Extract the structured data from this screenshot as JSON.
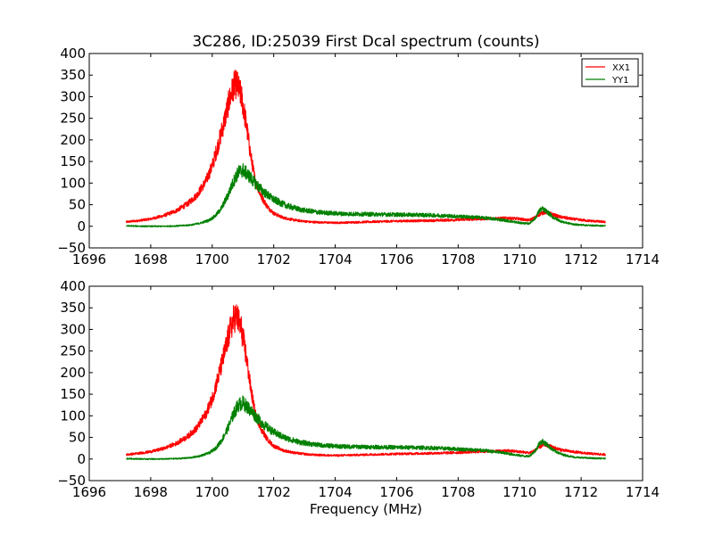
{
  "chart_data": [
    {
      "type": "line",
      "title": "3C286, ID:25039 First Dcal spectrum (counts)",
      "xlabel": "",
      "ylabel": "",
      "xlim": [
        1696,
        1714
      ],
      "ylim": [
        -50,
        400
      ],
      "xticks": [
        1696,
        1698,
        1700,
        1702,
        1704,
        1706,
        1708,
        1710,
        1712,
        1714
      ],
      "yticks": [
        -50,
        0,
        50,
        100,
        150,
        200,
        250,
        300,
        350,
        400
      ],
      "grid": false,
      "legend": "top-right",
      "series": [
        {
          "name": "XX1",
          "color": "#ff0000",
          "noise": 0.1,
          "x": [
            1697.2,
            1697.6,
            1698.0,
            1698.4,
            1698.8,
            1699.2,
            1699.5,
            1699.8,
            1700.0,
            1700.2,
            1700.4,
            1700.55,
            1700.7,
            1700.8,
            1700.95,
            1701.1,
            1701.25,
            1701.4,
            1701.6,
            1701.8,
            1702.0,
            1702.3,
            1702.7,
            1703.2,
            1704.0,
            1705.0,
            1706.0,
            1707.0,
            1708.0,
            1709.0,
            1709.6,
            1710.0,
            1710.3,
            1710.5,
            1710.7,
            1710.85,
            1711.0,
            1711.3,
            1711.7,
            1712.2,
            1712.8
          ],
          "y": [
            10,
            13,
            17,
            24,
            35,
            52,
            72,
            105,
            140,
            190,
            245,
            290,
            325,
            330,
            300,
            240,
            165,
            105,
            68,
            45,
            30,
            20,
            14,
            10,
            8,
            10,
            12,
            13,
            15,
            18,
            19,
            17,
            14,
            20,
            30,
            33,
            29,
            22,
            17,
            13,
            10
          ]
        },
        {
          "name": "YY1",
          "color": "#008000",
          "noise": 0.12,
          "x": [
            1697.2,
            1697.8,
            1698.4,
            1698.9,
            1699.3,
            1699.6,
            1699.9,
            1700.1,
            1700.3,
            1700.5,
            1700.7,
            1700.85,
            1701.0,
            1701.15,
            1701.3,
            1701.5,
            1701.7,
            1702.0,
            1702.4,
            1702.9,
            1703.5,
            1704.2,
            1705.0,
            1706.0,
            1707.0,
            1708.0,
            1708.8,
            1709.5,
            1710.0,
            1710.3,
            1710.5,
            1710.65,
            1710.75,
            1710.9,
            1711.1,
            1711.4,
            1711.8,
            1712.3,
            1712.8
          ],
          "y": [
            1,
            0,
            0,
            1,
            3,
            7,
            14,
            24,
            42,
            70,
            105,
            125,
            130,
            120,
            108,
            92,
            78,
            62,
            48,
            38,
            32,
            29,
            28,
            27,
            26,
            23,
            20,
            14,
            8,
            6,
            18,
            37,
            40,
            33,
            20,
            10,
            4,
            2,
            1
          ]
        }
      ]
    },
    {
      "type": "line",
      "title": "",
      "xlabel": "Frequency (MHz)",
      "ylabel": "",
      "xlim": [
        1696,
        1714
      ],
      "ylim": [
        -50,
        400
      ],
      "xticks": [
        1696,
        1698,
        1700,
        1702,
        1704,
        1706,
        1708,
        1710,
        1712,
        1714
      ],
      "yticks": [
        -50,
        0,
        50,
        100,
        150,
        200,
        250,
        300,
        350,
        400
      ],
      "grid": false,
      "legend": "none",
      "series": [
        {
          "color": "#ff0000",
          "noise": 0.1,
          "x": [
            1697.2,
            1697.6,
            1698.0,
            1698.4,
            1698.8,
            1699.2,
            1699.5,
            1699.8,
            1700.0,
            1700.2,
            1700.4,
            1700.55,
            1700.7,
            1700.8,
            1700.95,
            1701.1,
            1701.25,
            1701.4,
            1701.6,
            1701.8,
            1702.0,
            1702.3,
            1702.7,
            1703.2,
            1704.0,
            1705.0,
            1706.0,
            1707.0,
            1708.0,
            1709.0,
            1709.6,
            1710.0,
            1710.3,
            1710.5,
            1710.7,
            1710.85,
            1711.0,
            1711.3,
            1711.7,
            1712.2,
            1712.8
          ],
          "y": [
            10,
            13,
            17,
            24,
            35,
            52,
            72,
            105,
            140,
            190,
            245,
            290,
            325,
            330,
            300,
            240,
            165,
            105,
            68,
            45,
            30,
            20,
            14,
            10,
            8,
            10,
            12,
            13,
            15,
            18,
            19,
            17,
            14,
            20,
            30,
            33,
            29,
            22,
            17,
            13,
            10
          ]
        },
        {
          "color": "#008000",
          "noise": 0.12,
          "x": [
            1697.2,
            1697.8,
            1698.4,
            1698.9,
            1699.3,
            1699.6,
            1699.9,
            1700.1,
            1700.3,
            1700.5,
            1700.7,
            1700.85,
            1701.0,
            1701.15,
            1701.3,
            1701.5,
            1701.7,
            1702.0,
            1702.4,
            1702.9,
            1703.5,
            1704.2,
            1705.0,
            1706.0,
            1707.0,
            1708.0,
            1708.8,
            1709.5,
            1710.0,
            1710.3,
            1710.5,
            1710.65,
            1710.75,
            1710.9,
            1711.1,
            1711.4,
            1711.8,
            1712.3,
            1712.8
          ],
          "y": [
            1,
            0,
            0,
            1,
            3,
            7,
            14,
            24,
            42,
            70,
            105,
            125,
            130,
            120,
            108,
            92,
            78,
            62,
            48,
            38,
            32,
            29,
            28,
            27,
            26,
            23,
            20,
            14,
            8,
            6,
            18,
            37,
            40,
            33,
            20,
            10,
            4,
            2,
            1
          ]
        }
      ]
    }
  ]
}
